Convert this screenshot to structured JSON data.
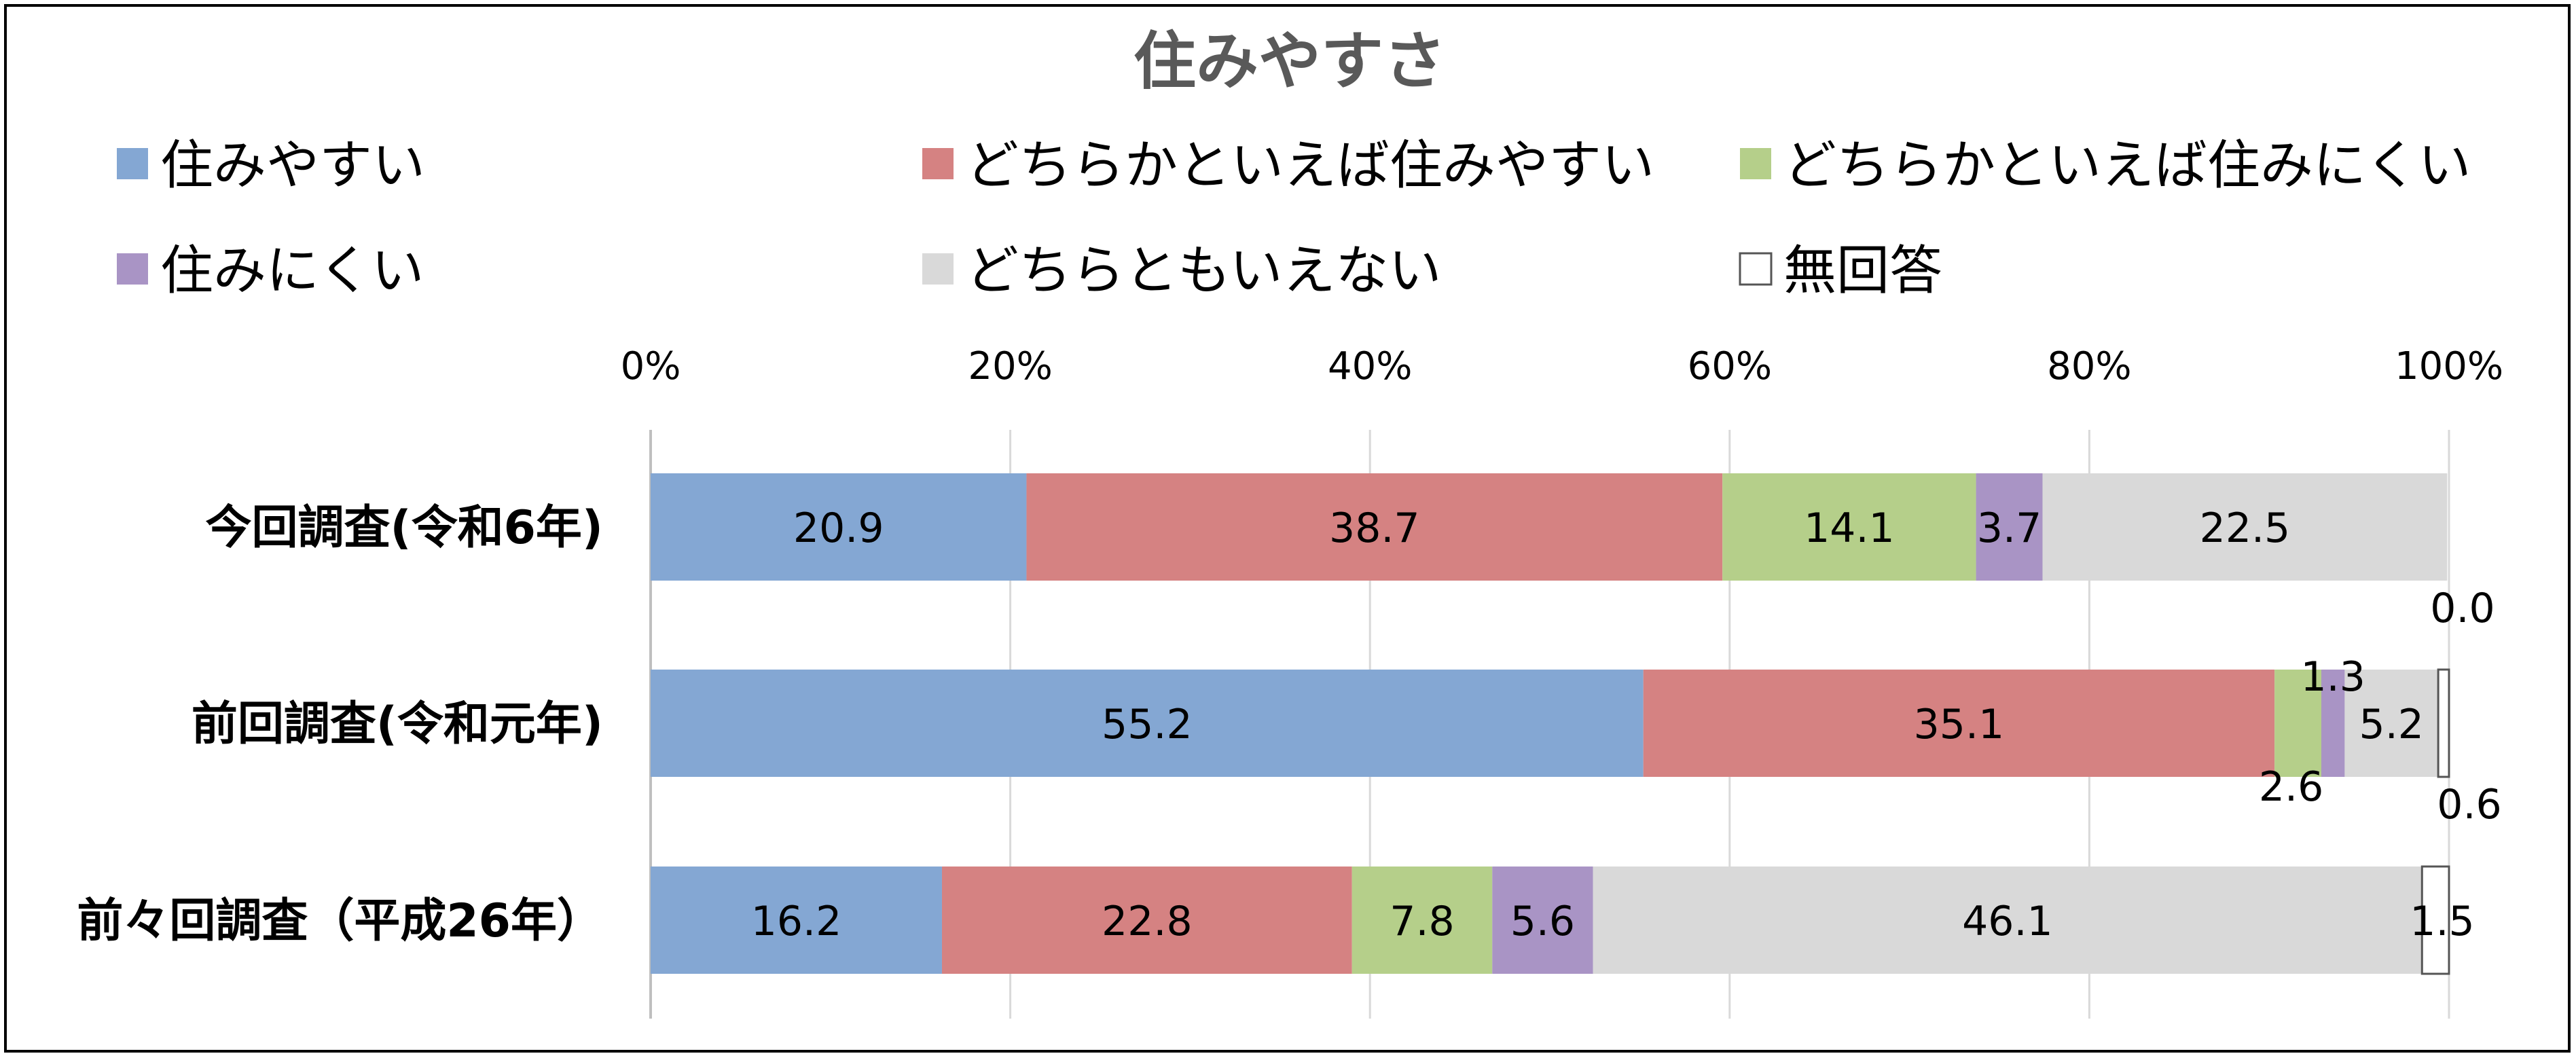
{
  "chart_data": {
    "type": "bar",
    "orientation": "horizontal",
    "stacked": "percent",
    "title": "住みやすさ",
    "categories": [
      "今回調査(令和6年)",
      "前回調査(令和元年)",
      "前々回調査（平成26年）"
    ],
    "series": [
      {
        "name": "住みやすい",
        "color": "#84A7D3",
        "values": [
          20.9,
          55.2,
          16.2
        ]
      },
      {
        "name": "どちらかといえば住みやすい",
        "color": "#D58282",
        "values": [
          38.7,
          35.1,
          22.8
        ]
      },
      {
        "name": "どちらかといえば住みにくい",
        "color": "#B5CF8A",
        "values": [
          14.1,
          2.6,
          7.8
        ]
      },
      {
        "name": "住みにくい",
        "color": "#A994C5",
        "values": [
          3.7,
          1.3,
          5.6
        ]
      },
      {
        "name": "どちらともいえない",
        "color": "#D9D9D9",
        "values": [
          22.5,
          5.2,
          46.1
        ]
      },
      {
        "name": "無回答",
        "color": "#FFFFFF",
        "values": [
          0.0,
          0.6,
          1.5
        ]
      }
    ],
    "xlim": [
      0,
      100
    ],
    "xticks": [
      "0%",
      "20%",
      "40%",
      "60%",
      "80%",
      "100%"
    ],
    "grid": true,
    "legend_position": "top"
  }
}
